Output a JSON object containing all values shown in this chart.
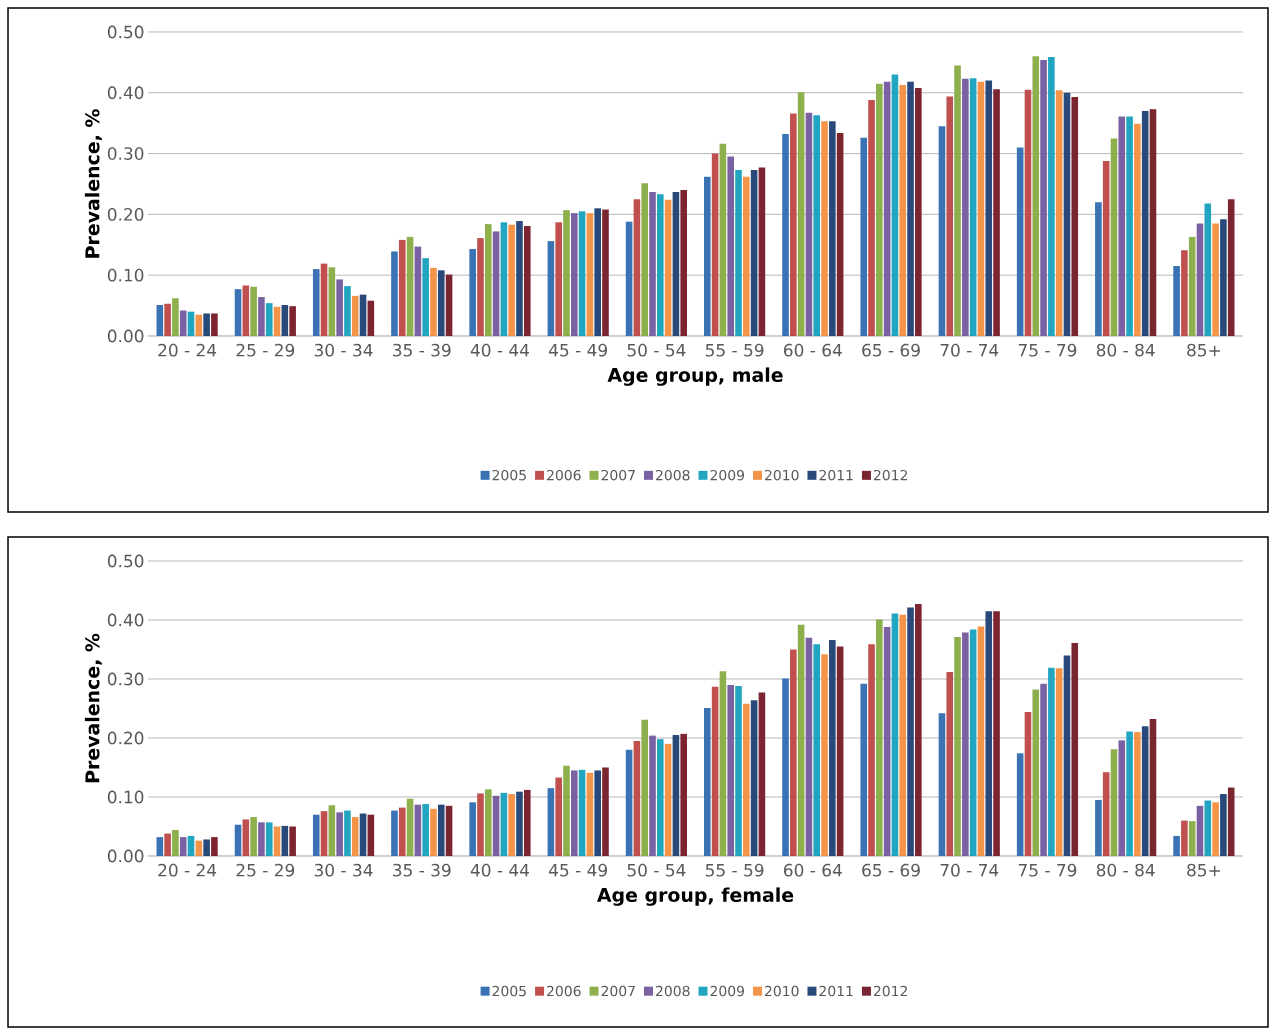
{
  "chart_data": [
    {
      "type": "bar",
      "xlabel": "Age group, male",
      "ylabel": "Prevalence, %",
      "categories": [
        "20 - 24",
        "25 - 29",
        "30 - 34",
        "35 - 39",
        "40 - 44",
        "45 - 49",
        "50 - 54",
        "55 - 59",
        "60 - 64",
        "65 - 69",
        "70 - 74",
        "75 - 79",
        "80 - 84",
        "85+"
      ],
      "ylim": [
        0,
        0.5
      ],
      "yticks": [
        {
          "value": 0,
          "label": "0.00"
        },
        {
          "value": 0.1,
          "label": "0.10"
        },
        {
          "value": 0.2,
          "label": "0.20"
        },
        {
          "value": 0.3,
          "label": "0.30"
        },
        {
          "value": 0.4,
          "label": "0.40"
        },
        {
          "value": 0.5,
          "label": "0.50"
        }
      ],
      "grid": "y",
      "legend": "bottom",
      "series": [
        {
          "name": "2005",
          "color": "#3a72b4",
          "values": [
            0.051,
            0.077,
            0.11,
            0.139,
            0.143,
            0.156,
            0.188,
            0.262,
            0.332,
            0.326,
            0.345,
            0.31,
            0.22,
            0.115
          ]
        },
        {
          "name": "2006",
          "color": "#c0504d",
          "values": [
            0.053,
            0.083,
            0.119,
            0.158,
            0.161,
            0.187,
            0.225,
            0.3,
            0.366,
            0.388,
            0.394,
            0.405,
            0.288,
            0.141
          ]
        },
        {
          "name": "2007",
          "color": "#8db04c",
          "values": [
            0.062,
            0.081,
            0.113,
            0.163,
            0.184,
            0.207,
            0.251,
            0.316,
            0.401,
            0.415,
            0.445,
            0.46,
            0.325,
            0.163
          ]
        },
        {
          "name": "2008",
          "color": "#7a62a2",
          "values": [
            0.042,
            0.064,
            0.093,
            0.147,
            0.172,
            0.202,
            0.237,
            0.295,
            0.367,
            0.418,
            0.423,
            0.454,
            0.361,
            0.185
          ]
        },
        {
          "name": "2009",
          "color": "#22a5c0",
          "values": [
            0.04,
            0.054,
            0.082,
            0.128,
            0.187,
            0.205,
            0.233,
            0.273,
            0.363,
            0.43,
            0.424,
            0.459,
            0.361,
            0.218
          ]
        },
        {
          "name": "2010",
          "color": "#f39449",
          "values": [
            0.035,
            0.048,
            0.066,
            0.112,
            0.183,
            0.202,
            0.224,
            0.262,
            0.353,
            0.413,
            0.418,
            0.404,
            0.349,
            0.185
          ]
        },
        {
          "name": "2011",
          "color": "#28497a",
          "values": [
            0.037,
            0.051,
            0.068,
            0.108,
            0.189,
            0.21,
            0.237,
            0.273,
            0.353,
            0.418,
            0.42,
            0.4,
            0.37,
            0.192
          ]
        },
        {
          "name": "2012",
          "color": "#7b2530",
          "values": [
            0.037,
            0.049,
            0.058,
            0.101,
            0.181,
            0.208,
            0.24,
            0.277,
            0.334,
            0.408,
            0.406,
            0.393,
            0.373,
            0.225
          ]
        }
      ]
    },
    {
      "type": "bar",
      "xlabel": "Age group, female",
      "ylabel": "Prevalence, %",
      "categories": [
        "20 - 24",
        "25 - 29",
        "30 - 34",
        "35 - 39",
        "40 - 44",
        "45 - 49",
        "50 - 54",
        "55 - 59",
        "60 - 64",
        "65 - 69",
        "70 - 74",
        "75 - 79",
        "80 - 84",
        "85+"
      ],
      "ylim": [
        0,
        0.5
      ],
      "yticks": [
        {
          "value": 0,
          "label": "0.00"
        },
        {
          "value": 0.1,
          "label": "0.10"
        },
        {
          "value": 0.2,
          "label": "0.20"
        },
        {
          "value": 0.3,
          "label": "0.30"
        },
        {
          "value": 0.4,
          "label": "0.40"
        },
        {
          "value": 0.5,
          "label": "0.50"
        }
      ],
      "grid": "y",
      "legend": "bottom",
      "series": [
        {
          "name": "2005",
          "color": "#3a72b4",
          "values": [
            0.032,
            0.053,
            0.07,
            0.077,
            0.091,
            0.115,
            0.18,
            0.251,
            0.301,
            0.292,
            0.242,
            0.174,
            0.095,
            0.034
          ]
        },
        {
          "name": "2006",
          "color": "#c0504d",
          "values": [
            0.038,
            0.062,
            0.076,
            0.082,
            0.106,
            0.133,
            0.195,
            0.287,
            0.35,
            0.359,
            0.312,
            0.244,
            0.142,
            0.06
          ]
        },
        {
          "name": "2007",
          "color": "#8db04c",
          "values": [
            0.044,
            0.066,
            0.086,
            0.097,
            0.113,
            0.153,
            0.231,
            0.313,
            0.392,
            0.401,
            0.371,
            0.282,
            0.181,
            0.059
          ]
        },
        {
          "name": "2008",
          "color": "#7a62a2",
          "values": [
            0.032,
            0.057,
            0.074,
            0.087,
            0.102,
            0.145,
            0.204,
            0.29,
            0.37,
            0.388,
            0.379,
            0.292,
            0.196,
            0.085
          ]
        },
        {
          "name": "2009",
          "color": "#22a5c0",
          "values": [
            0.034,
            0.057,
            0.077,
            0.088,
            0.107,
            0.146,
            0.198,
            0.288,
            0.359,
            0.411,
            0.384,
            0.319,
            0.211,
            0.094
          ]
        },
        {
          "name": "2010",
          "color": "#f39449",
          "values": [
            0.026,
            0.05,
            0.066,
            0.08,
            0.105,
            0.141,
            0.19,
            0.258,
            0.342,
            0.409,
            0.389,
            0.318,
            0.21,
            0.091
          ]
        },
        {
          "name": "2011",
          "color": "#28497a",
          "values": [
            0.028,
            0.051,
            0.072,
            0.087,
            0.109,
            0.145,
            0.205,
            0.264,
            0.366,
            0.421,
            0.415,
            0.34,
            0.22,
            0.105
          ]
        },
        {
          "name": "2012",
          "color": "#7b2530",
          "values": [
            0.032,
            0.05,
            0.07,
            0.085,
            0.112,
            0.15,
            0.207,
            0.277,
            0.355,
            0.427,
            0.415,
            0.361,
            0.232,
            0.116
          ]
        }
      ]
    }
  ]
}
